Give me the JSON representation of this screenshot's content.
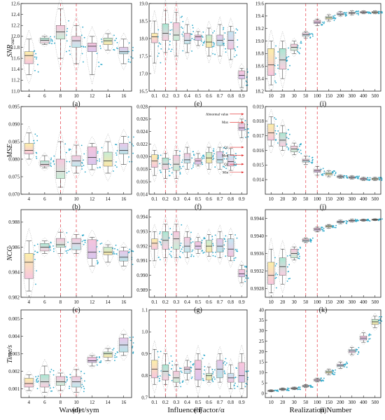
{
  "colors": {
    "red_dash": "#e8505b",
    "axis": "#222222",
    "arrow": "#e02020"
  },
  "column_labels": [
    "Wavelet/sym",
    "Influence Factor/α",
    "Realization Number"
  ],
  "row_labels": [
    {
      "name": "SNR",
      "sub": "out"
    },
    {
      "name": "MSE",
      "sub": ""
    },
    {
      "name": "NCC",
      "sub": ""
    },
    {
      "name": "Time/s",
      "sub": ""
    }
  ],
  "annotation_labels": [
    "Abnormal value",
    "Max",
    "Q1",
    "Med",
    "Q2",
    "Min"
  ],
  "chart_data": [
    {
      "type": "box",
      "panel_label": "(a)",
      "categories": [
        "4",
        "6",
        "8",
        "10",
        "12",
        "14",
        "16"
      ],
      "ylim": [
        11.0,
        12.6
      ],
      "yticks": [
        "11.0",
        "11.2",
        "11.4",
        "11.6",
        "11.8",
        "12.0",
        "12.2",
        "12.4",
        "12.6"
      ],
      "boxes": [
        [
          11.3,
          11.5,
          11.65,
          11.72,
          11.95
        ],
        [
          11.85,
          11.88,
          11.93,
          11.97,
          12.0
        ],
        [
          11.6,
          11.95,
          12.08,
          12.2,
          12.5
        ],
        [
          11.5,
          11.8,
          11.92,
          12.0,
          12.2
        ],
        [
          11.3,
          11.72,
          11.82,
          11.88,
          12.0
        ],
        [
          11.75,
          11.85,
          11.92,
          11.97,
          12.05
        ],
        [
          11.5,
          11.68,
          11.72,
          11.8,
          11.95
        ]
      ],
      "dashed_lines_at": [
        "8",
        "10"
      ]
    },
    {
      "type": "box",
      "panel_label": "(e)",
      "categories": [
        "0.1",
        "0.2",
        "0.3",
        "0.4",
        "0.5",
        "0.6",
        "0.7",
        "0.8",
        "0.9"
      ],
      "ylim": [
        16.5,
        19.0
      ],
      "yticks": [
        "16.5",
        "17.0",
        "17.5",
        "18.0",
        "18.5",
        "19.0"
      ],
      "boxes": [
        [
          17.3,
          17.88,
          18.05,
          18.15,
          18.5
        ],
        [
          17.6,
          17.95,
          18.15,
          18.42,
          18.8
        ],
        [
          17.5,
          17.95,
          18.1,
          18.45,
          18.75
        ],
        [
          17.6,
          17.85,
          17.95,
          18.15,
          18.4
        ],
        [
          17.8,
          17.95,
          18.05,
          18.1,
          18.2
        ],
        [
          17.5,
          17.75,
          17.9,
          18.1,
          18.3
        ],
        [
          17.5,
          17.8,
          17.95,
          18.1,
          18.4
        ],
        [
          17.4,
          17.7,
          17.95,
          18.2,
          18.35
        ],
        [
          16.6,
          16.85,
          16.95,
          17.08,
          17.15
        ]
      ],
      "dashed_lines_at": [
        "0.2",
        "0.3"
      ]
    },
    {
      "type": "box",
      "panel_label": "(i)",
      "categories": [
        "10",
        "20",
        "30",
        "50",
        "100",
        "150",
        "200",
        "300",
        "400",
        "500"
      ],
      "ylim": [
        18.2,
        19.6
      ],
      "yticks": [
        "18.2",
        "18.4",
        "18.6",
        "18.8",
        "19.0",
        "19.2",
        "19.4",
        "19.6"
      ],
      "boxes": [
        [
          18.3,
          18.45,
          18.62,
          18.88,
          19.0
        ],
        [
          18.4,
          18.55,
          18.7,
          18.88,
          19.0
        ],
        [
          18.8,
          18.85,
          18.9,
          18.95,
          19.0
        ],
        [
          19.05,
          19.08,
          19.1,
          19.13,
          19.15
        ],
        [
          19.25,
          19.28,
          19.3,
          19.33,
          19.35
        ],
        [
          19.32,
          19.35,
          19.37,
          19.39,
          19.42
        ],
        [
          19.4,
          19.42,
          19.43,
          19.45,
          19.47
        ],
        [
          19.42,
          19.44,
          19.45,
          19.46,
          19.48
        ],
        [
          19.44,
          19.45,
          19.46,
          19.47,
          19.48
        ],
        [
          19.44,
          19.45,
          19.46,
          19.47,
          19.48
        ]
      ],
      "dashed_lines_at": [
        "50",
        "100"
      ]
    },
    {
      "type": "box",
      "panel_label": "(b)",
      "categories": [
        "4",
        "6",
        "8",
        "10",
        "12",
        "14",
        "16"
      ],
      "ylim": [
        0.07,
        0.095
      ],
      "yticks": [
        "0.070",
        "0.075",
        "0.080",
        "0.085",
        "0.090",
        "0.095"
      ],
      "boxes": [
        [
          0.08,
          0.0815,
          0.0825,
          0.0845,
          0.0875
        ],
        [
          0.0775,
          0.078,
          0.0785,
          0.0795,
          0.081
        ],
        [
          0.072,
          0.0745,
          0.0765,
          0.08,
          0.085
        ],
        [
          0.076,
          0.078,
          0.0795,
          0.081,
          0.084
        ],
        [
          0.077,
          0.0785,
          0.0805,
          0.0835,
          0.0845
        ],
        [
          0.076,
          0.078,
          0.0795,
          0.082,
          0.085
        ],
        [
          0.0785,
          0.0815,
          0.0825,
          0.0845,
          0.0865
        ]
      ],
      "dashed_lines_at": [
        "8",
        "10"
      ]
    },
    {
      "type": "box",
      "panel_label": "(f)",
      "categories": [
        "0.1",
        "0.2",
        "0.3",
        "0.4",
        "0.5",
        "0.6",
        "0.7",
        "0.8",
        "0.9"
      ],
      "ylim": [
        0.014,
        0.028
      ],
      "yticks": [
        "0.014",
        "0.016",
        "0.018",
        "0.020",
        "0.022",
        "0.024",
        "0.026",
        "0.028"
      ],
      "boxes": [
        [
          0.017,
          0.0183,
          0.0193,
          0.0203,
          0.021
        ],
        [
          0.0165,
          0.018,
          0.0188,
          0.0198,
          0.0205
        ],
        [
          0.0165,
          0.0178,
          0.0188,
          0.0202,
          0.021
        ],
        [
          0.018,
          0.019,
          0.0195,
          0.0205,
          0.0215
        ],
        [
          0.0185,
          0.0188,
          0.0193,
          0.0197,
          0.0205
        ],
        [
          0.018,
          0.019,
          0.0198,
          0.0207,
          0.0215
        ],
        [
          0.018,
          0.019,
          0.0195,
          0.0208,
          0.0215
        ],
        [
          0.0178,
          0.0185,
          0.0192,
          0.0203,
          0.0213
        ],
        [
          0.023,
          0.0242,
          0.0246,
          0.0253,
          0.026
        ]
      ],
      "dashed_lines_at": [
        "0.2",
        "0.3"
      ],
      "annotations": [
        {
          "label": "Abnormal value",
          "x": "0.9",
          "y": 0.0268
        },
        {
          "label": "Max",
          "x": "0.9",
          "y": 0.0255
        },
        {
          "label": "Q1",
          "x": "0.9",
          "y": 0.0215
        },
        {
          "label": "Med",
          "x": "0.9",
          "y": 0.0202
        },
        {
          "label": "Q2",
          "x": "0.9",
          "y": 0.0188
        },
        {
          "label": "Min",
          "x": "0.9",
          "y": 0.0175
        }
      ]
    },
    {
      "type": "box",
      "panel_label": "(j)",
      "categories": [
        "10",
        "20",
        "30",
        "50",
        "100",
        "150",
        "200",
        "300",
        "400",
        "500"
      ],
      "ylim": [
        0.013,
        0.019
      ],
      "yticks": [
        "0.014",
        "0.015",
        "0.016",
        "0.017",
        "0.018",
        "0.019"
      ],
      "boxes": [
        [
          0.0163,
          0.0167,
          0.0172,
          0.0178,
          0.0183
        ],
        [
          0.016,
          0.0163,
          0.0167,
          0.0172,
          0.0177
        ],
        [
          0.0157,
          0.0159,
          0.0161,
          0.0163,
          0.0165
        ],
        [
          0.01505,
          0.0152,
          0.0153,
          0.0154,
          0.0156
        ],
        [
          0.0143,
          0.0145,
          0.0146,
          0.0147,
          0.0149
        ],
        [
          0.0142,
          0.0143,
          0.0144,
          0.0145,
          0.0146
        ],
        [
          0.0141,
          0.01415,
          0.0142,
          0.01425,
          0.0143
        ],
        [
          0.01405,
          0.0141,
          0.01415,
          0.0142,
          0.01425
        ],
        [
          0.01395,
          0.014,
          0.01405,
          0.0141,
          0.01415
        ],
        [
          0.01395,
          0.014,
          0.01405,
          0.0141,
          0.01415
        ]
      ],
      "dashed_lines_at": [
        "50",
        "100"
      ]
    },
    {
      "type": "box",
      "panel_label": "(c)",
      "categories": [
        "4",
        "6",
        "8",
        "10",
        "12",
        "14",
        "16"
      ],
      "ylim": [
        0.982,
        0.989
      ],
      "yticks": [
        "0.982",
        "0.984",
        "0.986",
        "0.988"
      ],
      "boxes": [
        [
          0.9825,
          0.9835,
          0.9848,
          0.9855,
          0.9865
        ],
        [
          0.9855,
          0.9857,
          0.986,
          0.9863,
          0.9865
        ],
        [
          0.9855,
          0.986,
          0.9862,
          0.9867,
          0.9872
        ],
        [
          0.9855,
          0.9858,
          0.9863,
          0.9867,
          0.987
        ],
        [
          0.9845,
          0.9851,
          0.9856,
          0.9866,
          0.9868
        ],
        [
          0.9848,
          0.9854,
          0.9856,
          0.986,
          0.9862
        ],
        [
          0.9845,
          0.9849,
          0.9852,
          0.9857,
          0.986
        ]
      ],
      "dashed_lines_at": [
        "8",
        "10"
      ]
    },
    {
      "type": "box",
      "panel_label": "(g)",
      "categories": [
        "0.1",
        "0.2",
        "0.3",
        "0.4",
        "0.5",
        "0.6",
        "0.7",
        "0.8",
        "0.9"
      ],
      "ylim": [
        0.9885,
        0.9945
      ],
      "yticks": [
        "0.989",
        "0.990",
        "0.991",
        "0.992",
        "0.993",
        "0.994"
      ],
      "boxes": [
        [
          0.991,
          0.9918,
          0.9922,
          0.9925,
          0.993
        ],
        [
          0.9912,
          0.9918,
          0.9924,
          0.993,
          0.9935
        ],
        [
          0.9912,
          0.9918,
          0.9925,
          0.993,
          0.9935
        ],
        [
          0.9912,
          0.9916,
          0.992,
          0.9926,
          0.993
        ],
        [
          0.9915,
          0.9918,
          0.992,
          0.9923,
          0.9926
        ],
        [
          0.9913,
          0.9916,
          0.992,
          0.9924,
          0.9928
        ],
        [
          0.9912,
          0.9916,
          0.992,
          0.9925,
          0.993
        ],
        [
          0.991,
          0.9913,
          0.9918,
          0.9925,
          0.9928
        ],
        [
          0.9895,
          0.9899,
          0.9901,
          0.9904,
          0.9907
        ]
      ],
      "dashed_lines_at": [
        "0.2",
        "0.3"
      ]
    },
    {
      "type": "box",
      "panel_label": "(k)",
      "categories": [
        "10",
        "20",
        "30",
        "50",
        "100",
        "150",
        "200",
        "300",
        "400",
        "500"
      ],
      "ylim": [
        0.9926,
        0.9946
      ],
      "yticks": [
        "0.9928",
        "0.9932",
        "0.9936",
        "0.9940",
        "0.9944"
      ],
      "boxes": [
        [
          0.9927,
          0.9929,
          0.9931,
          0.9934,
          0.9937
        ],
        [
          0.9929,
          0.9931,
          0.9933,
          0.9935,
          0.9937
        ],
        [
          0.99345,
          0.9935,
          0.9936,
          0.9937,
          0.99375
        ],
        [
          0.99385,
          0.99387,
          0.9939,
          0.99393,
          0.99395
        ],
        [
          0.9941,
          0.99412,
          0.99415,
          0.99418,
          0.9942
        ],
        [
          0.99418,
          0.9942,
          0.99422,
          0.99424,
          0.99426
        ],
        [
          0.99428,
          0.9943,
          0.99432,
          0.99434,
          0.99436
        ],
        [
          0.99432,
          0.99433,
          0.99435,
          0.99436,
          0.99438
        ],
        [
          0.99434,
          0.99435,
          0.99436,
          0.99437,
          0.99438
        ],
        [
          0.99435,
          0.99436,
          0.99437,
          0.99438,
          0.99439
        ]
      ],
      "dashed_lines_at": [
        "50",
        "100"
      ]
    },
    {
      "type": "box",
      "panel_label": "(d)",
      "categories": [
        "4",
        "6",
        "8",
        "10",
        "12",
        "14",
        "16"
      ],
      "ylim": [
        0.0005,
        0.0055
      ],
      "yticks": [
        "0.001",
        "0.002",
        "0.003",
        "0.004",
        "0.005"
      ],
      "boxes": [
        [
          0.0009,
          0.0011,
          0.0013,
          0.0016,
          0.0018
        ],
        [
          0.0008,
          0.0011,
          0.0014,
          0.0018,
          0.0023
        ],
        [
          0.0009,
          0.0012,
          0.0014,
          0.0017,
          0.0019
        ],
        [
          0.0008,
          0.0011,
          0.0014,
          0.0017,
          0.0021
        ],
        [
          0.0023,
          0.0025,
          0.0026,
          0.0028,
          0.0029
        ],
        [
          0.0026,
          0.0028,
          0.003,
          0.0031,
          0.0033
        ],
        [
          0.0029,
          0.0031,
          0.0035,
          0.0039,
          0.0041
        ]
      ],
      "dashed_lines_at": [
        "8",
        "10"
      ]
    },
    {
      "type": "box",
      "panel_label": "(h)",
      "categories": [
        "0.1",
        "0.2",
        "0.3",
        "0.4",
        "0.5",
        "0.6",
        "0.7",
        "0.8",
        "0.9"
      ],
      "ylim": [
        0.7,
        1.1
      ],
      "yticks": [
        "0.7",
        "0.8",
        "0.9",
        "1.0",
        "1.1"
      ],
      "boxes": [
        [
          0.76,
          0.79,
          0.83,
          0.87,
          0.92
        ],
        [
          0.76,
          0.78,
          0.82,
          0.85,
          0.9
        ],
        [
          0.75,
          0.77,
          0.79,
          0.82,
          0.85
        ],
        [
          0.78,
          0.81,
          0.83,
          0.84,
          0.87
        ],
        [
          0.75,
          0.78,
          0.83,
          0.87,
          0.9
        ],
        [
          0.77,
          0.78,
          0.8,
          0.81,
          0.84
        ],
        [
          0.77,
          0.79,
          0.83,
          0.87,
          0.9
        ],
        [
          0.74,
          0.77,
          0.79,
          0.81,
          0.85
        ],
        [
          0.74,
          0.77,
          0.8,
          0.86,
          0.9
        ]
      ],
      "dashed_lines_at": [
        "0.2",
        "0.3"
      ]
    },
    {
      "type": "box",
      "panel_label": "(l)",
      "categories": [
        "10",
        "20",
        "30",
        "50",
        "100",
        "150",
        "200",
        "300",
        "400",
        "500"
      ],
      "ylim": [
        -2,
        40
      ],
      "yticks": [
        "0",
        "5",
        "10",
        "15",
        "20",
        "25",
        "30",
        "35",
        "40"
      ],
      "boxes": [
        [
          0.8,
          1.0,
          1.2,
          1.4,
          1.7
        ],
        [
          1.4,
          1.7,
          2.0,
          2.3,
          2.6
        ],
        [
          1.8,
          2.1,
          2.4,
          2.7,
          3.0
        ],
        [
          2.9,
          3.2,
          3.5,
          3.8,
          4.2
        ],
        [
          5.6,
          6.0,
          6.4,
          6.8,
          7.3
        ],
        [
          9.0,
          9.7,
          10.2,
          10.8,
          11.5
        ],
        [
          12.0,
          12.8,
          13.4,
          14.0,
          15.0
        ],
        [
          18.5,
          19.5,
          20.3,
          21.0,
          22.0
        ],
        [
          24.5,
          25.6,
          26.5,
          27.5,
          29.0
        ],
        [
          31.5,
          33.0,
          34.3,
          35.5,
          37.0
        ]
      ],
      "dashed_lines_at": [
        "50",
        "100"
      ]
    }
  ]
}
